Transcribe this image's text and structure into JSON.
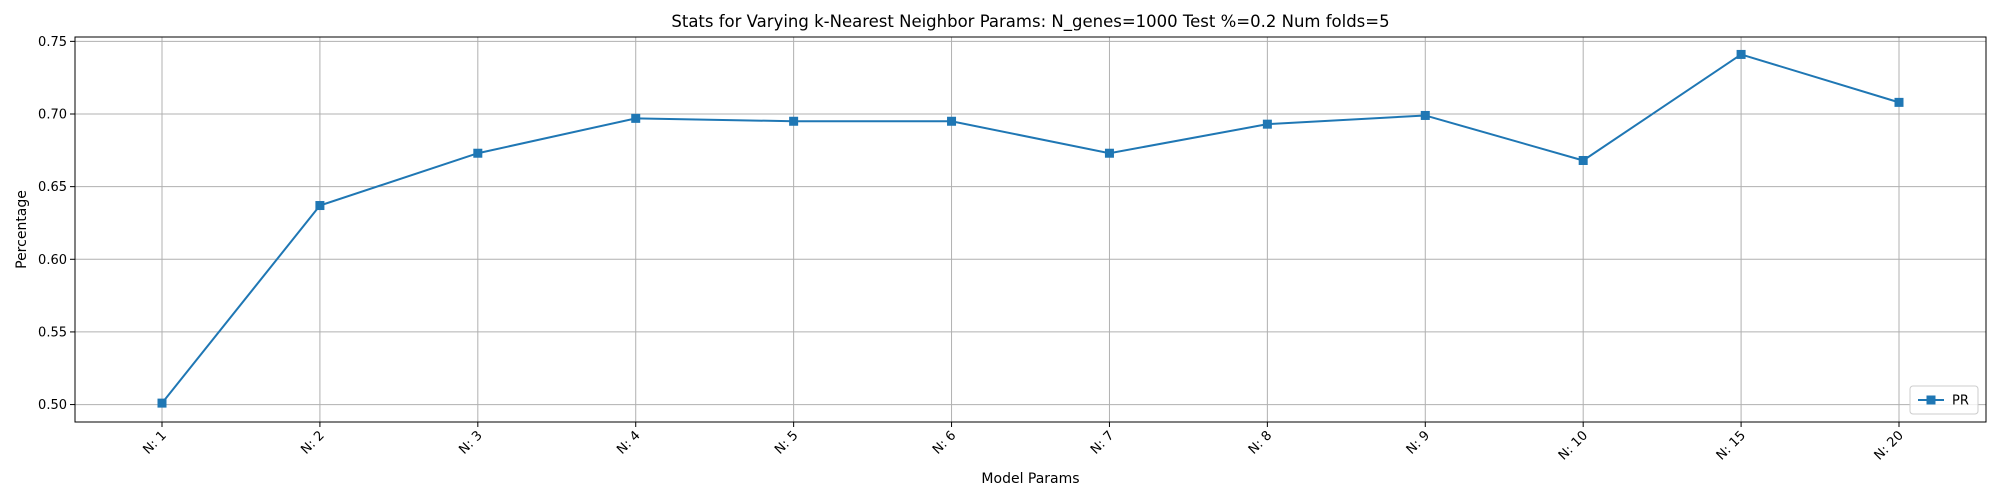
{
  "chart_data": {
    "type": "line",
    "title": "Stats for Varying k-Nearest Neighbor Params: N_genes=1000 Test %=0.2 Num folds=5",
    "xlabel": "Model Params",
    "ylabel": "Percentage",
    "categories": [
      "N: 1",
      "N: 2",
      "N: 3",
      "N: 4",
      "N: 5",
      "N: 6",
      "N: 7",
      "N: 8",
      "N: 9",
      "N: 10",
      "N: 15",
      "N: 20"
    ],
    "series": [
      {
        "name": "PR",
        "color": "#1f77b4",
        "marker": "square",
        "values": [
          0.501,
          0.637,
          0.673,
          0.697,
          0.695,
          0.695,
          0.673,
          0.693,
          0.699,
          0.668,
          0.741,
          0.708
        ]
      }
    ],
    "ylim": [
      0.488,
      0.753
    ],
    "yticks": [
      0.5,
      0.55,
      0.6,
      0.65,
      0.7,
      0.75
    ],
    "ytick_labels": [
      "0.50",
      "0.55",
      "0.60",
      "0.65",
      "0.70",
      "0.75"
    ],
    "grid": true,
    "legend_position": "bottom-right"
  }
}
